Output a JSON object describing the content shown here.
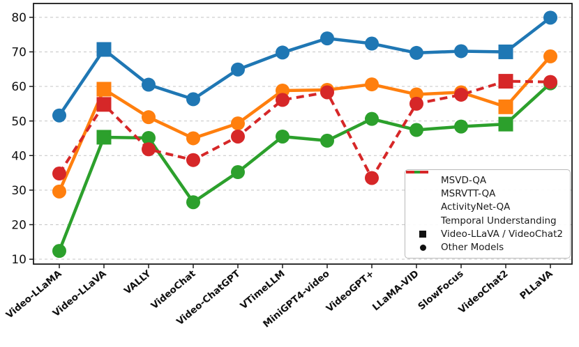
{
  "chart_data": {
    "type": "line",
    "title": "",
    "xlabel": "",
    "ylabel": "",
    "categories": [
      "Video-LLaMA",
      "Video-LLaVA",
      "VALLY",
      "VideoChat",
      "Video-ChatGPT",
      "VTimeLLM",
      "MiniGPT4-video",
      "VideoGPT+",
      "LLaMA-VID",
      "SlowFocus",
      "VideoChat2",
      "PLLaVA"
    ],
    "series": [
      {
        "name": "MSVD-QA",
        "color": "#1f77b4",
        "style": "solid",
        "values": [
          51.6,
          70.7,
          60.5,
          56.3,
          64.9,
          69.8,
          73.9,
          72.4,
          69.7,
          70.2,
          70.0,
          79.9
        ]
      },
      {
        "name": "MSRVTT-QA",
        "color": "#ff7f0e",
        "style": "solid",
        "values": [
          29.6,
          59.2,
          51.1,
          45.0,
          49.3,
          58.8,
          59.0,
          60.6,
          57.7,
          58.3,
          54.1,
          68.7
        ]
      },
      {
        "name": "ActivityNet-QA",
        "color": "#2ca02c",
        "style": "solid",
        "values": [
          12.4,
          45.3,
          45.1,
          26.5,
          35.2,
          45.5,
          44.3,
          50.6,
          47.4,
          48.4,
          49.1,
          60.9
        ]
      },
      {
        "name": "Temporal Understanding",
        "color": "#d62728",
        "style": "dashed",
        "values": [
          34.8,
          54.8,
          41.8,
          38.7,
          45.5,
          56.1,
          58.3,
          33.5,
          55.0,
          57.6,
          61.5,
          61.3
        ]
      }
    ],
    "marker_legend": [
      {
        "label": "Video-LLaVA / VideoChat2",
        "marker": "square"
      },
      {
        "label": "Other Models",
        "marker": "circle"
      }
    ],
    "square_marker_categories": [
      "Video-LLaVA",
      "VideoChat2"
    ],
    "yticks": [
      10,
      20,
      30,
      40,
      50,
      60,
      70,
      80
    ],
    "ylim": [
      8.6,
      84.0
    ],
    "grid": "horizontal-dashed",
    "legend_position": "lower-right",
    "colors": {
      "grid": "#c4c4c4",
      "spine": "#1a1a1a",
      "tick_label": "#111111",
      "legend_border": "#b9b9b9",
      "marker_key": "#111111"
    }
  }
}
